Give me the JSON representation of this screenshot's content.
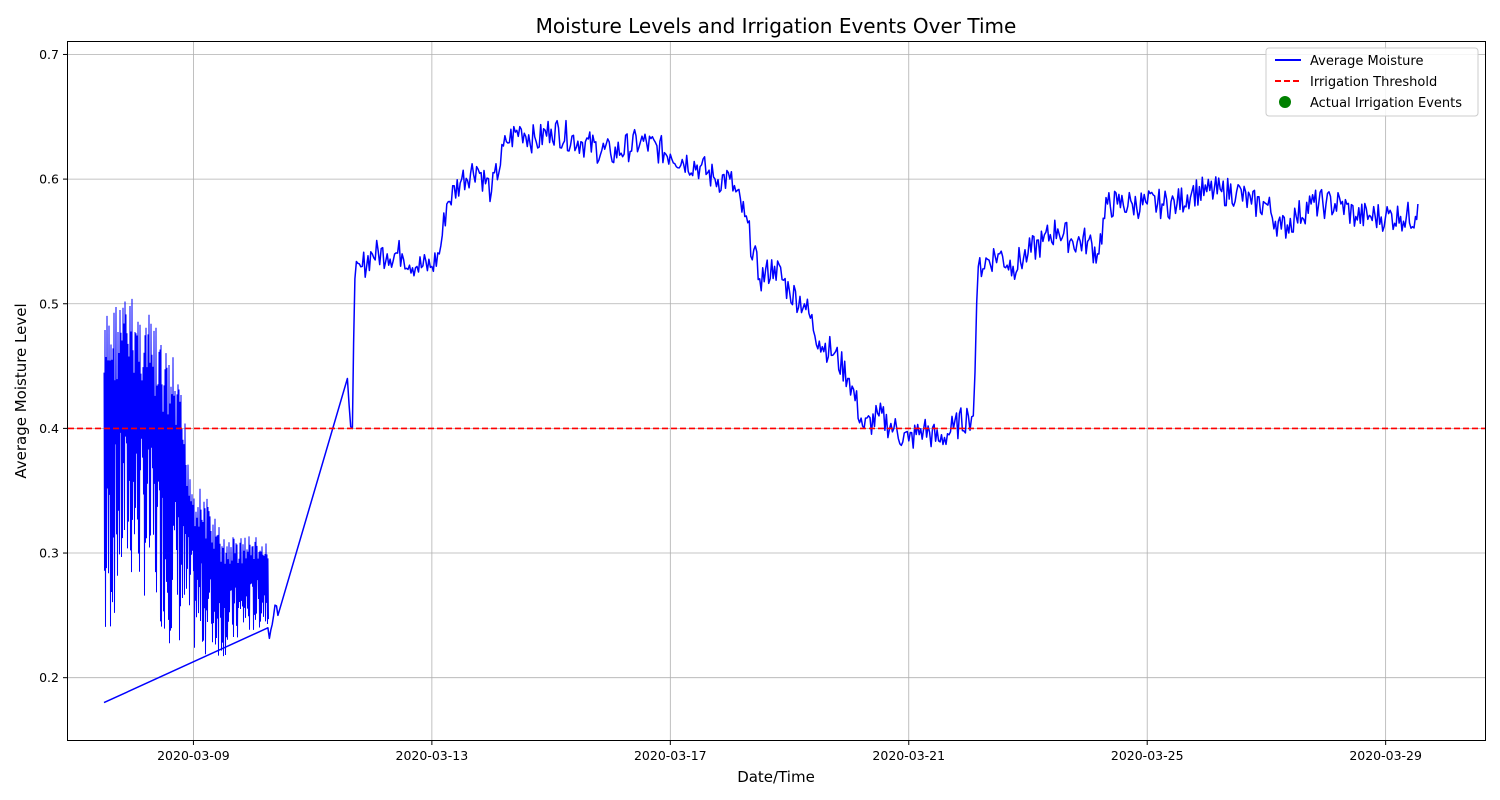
{
  "chart_data": {
    "type": "line",
    "title": "Moisture Levels and Irrigation Events Over Time",
    "xlabel": "Date/Time",
    "ylabel": "Average Moisture Level",
    "x_ticks": [
      "2020-03-09",
      "2020-03-13",
      "2020-03-17",
      "2020-03-21",
      "2020-03-25",
      "2020-03-29"
    ],
    "y_ticks": [
      "0.2",
      "0.3",
      "0.4",
      "0.5",
      "0.6",
      "0.7"
    ],
    "xlim": [
      "2020-03-06T21:30",
      "2020-03-30T16:00"
    ],
    "ylim": [
      0.15,
      0.71
    ],
    "grid": true,
    "legend_position": "top-right",
    "series": [
      {
        "name": "Average Moisture",
        "kind": "line",
        "color": "#0000ff",
        "bands": [
          {
            "x": [
              "2020-03-07T12:00",
              "2020-03-07T14:00",
              "2020-03-07T17:00",
              "2020-03-07T20:00",
              "2020-03-08T00:00",
              "2020-03-08T04:00",
              "2020-03-08T08:00",
              "2020-03-08T12:00",
              "2020-03-08T16:00",
              "2020-03-08T20:00",
              "2020-03-09T00:00",
              "2020-03-09T06:00",
              "2020-03-09T12:00",
              "2020-03-09T18:00",
              "2020-03-10T00:00",
              "2020-03-10T06:00"
            ],
            "high": [
              0.5,
              0.52,
              0.52,
              0.52,
              0.52,
              0.51,
              0.5,
              0.48,
              0.47,
              0.43,
              0.37,
              0.35,
              0.32,
              0.32,
              0.32,
              0.31
            ],
            "low": [
              0.18,
              0.21,
              0.24,
              0.26,
              0.26,
              0.25,
              0.24,
              0.22,
              0.21,
              0.21,
              0.21,
              0.21,
              0.21,
              0.22,
              0.23,
              0.24
            ]
          }
        ],
        "path_x": [
          "2020-03-07T12:00",
          "2020-03-10T06:00",
          "2020-03-10T10:00",
          "2020-03-11T14:00",
          "2020-03-11T16:00",
          "2020-03-11T17:00",
          "2020-03-11T20:00",
          "2020-03-12T00:00",
          "2020-03-12T06:00",
          "2020-03-12T12:00",
          "2020-03-12T18:00",
          "2020-03-13T00:00",
          "2020-03-13T03:00",
          "2020-03-13T06:00",
          "2020-03-13T12:00",
          "2020-03-13T18:00",
          "2020-03-14T00:00",
          "2020-03-14T06:00",
          "2020-03-14T12:00",
          "2020-03-14T18:00",
          "2020-03-15T00:00",
          "2020-03-15T12:00",
          "2020-03-16T00:00",
          "2020-03-16T12:00",
          "2020-03-17T00:00",
          "2020-03-17T12:00",
          "2020-03-17T18:00",
          "2020-03-18T00:00",
          "2020-03-18T06:00",
          "2020-03-18T12:00",
          "2020-03-18T18:00",
          "2020-03-19T00:00",
          "2020-03-19T06:00",
          "2020-03-19T12:00",
          "2020-03-19T18:00",
          "2020-03-20T00:00",
          "2020-03-20T06:00",
          "2020-03-20T12:00",
          "2020-03-20T18:00",
          "2020-03-21T00:00",
          "2020-03-21T06:00",
          "2020-03-21T12:00",
          "2020-03-21T18:00",
          "2020-03-22T00:00",
          "2020-03-22T02:00",
          "2020-03-22T04:00",
          "2020-03-22T12:00",
          "2020-03-22T18:00",
          "2020-03-23T00:00",
          "2020-03-23T06:00",
          "2020-03-23T12:00",
          "2020-03-23T18:00",
          "2020-03-24T00:00",
          "2020-03-24T04:00",
          "2020-03-24T08:00",
          "2020-03-24T12:00",
          "2020-03-24T18:00",
          "2020-03-25T00:00",
          "2020-03-25T06:00",
          "2020-03-25T12:00",
          "2020-03-25T18:00",
          "2020-03-26T00:00",
          "2020-03-26T06:00",
          "2020-03-26T12:00",
          "2020-03-26T18:00",
          "2020-03-27T00:00",
          "2020-03-27T06:00",
          "2020-03-27T12:00",
          "2020-03-27T18:00",
          "2020-03-28T00:00",
          "2020-03-28T06:00",
          "2020-03-28T12:00",
          "2020-03-28T18:00",
          "2020-03-29T00:00",
          "2020-03-29T06:00",
          "2020-03-29T12:00",
          "2020-03-29T13:00"
        ],
        "path_y": [
          0.18,
          0.24,
          0.25,
          0.44,
          0.4,
          0.52,
          0.53,
          0.54,
          0.54,
          0.54,
          0.53,
          0.53,
          0.54,
          0.58,
          0.6,
          0.61,
          0.59,
          0.63,
          0.64,
          0.63,
          0.64,
          0.63,
          0.62,
          0.63,
          0.62,
          0.61,
          0.6,
          0.6,
          0.57,
          0.52,
          0.53,
          0.51,
          0.5,
          0.47,
          0.46,
          0.44,
          0.4,
          0.41,
          0.4,
          0.39,
          0.4,
          0.39,
          0.4,
          0.41,
          0.41,
          0.53,
          0.54,
          0.53,
          0.54,
          0.55,
          0.56,
          0.55,
          0.55,
          0.54,
          0.58,
          0.58,
          0.58,
          0.58,
          0.58,
          0.58,
          0.59,
          0.59,
          0.59,
          0.59,
          0.58,
          0.58,
          0.56,
          0.57,
          0.58,
          0.58,
          0.58,
          0.57,
          0.57,
          0.57,
          0.57,
          0.57,
          0.58
        ],
        "noise": 0.012
      },
      {
        "name": "Irrigation Threshold",
        "kind": "hline",
        "color": "#ff0000",
        "value": 0.4
      },
      {
        "name": "Actual Irrigation Events",
        "kind": "scatter",
        "color": "#008000",
        "points": []
      }
    ]
  }
}
